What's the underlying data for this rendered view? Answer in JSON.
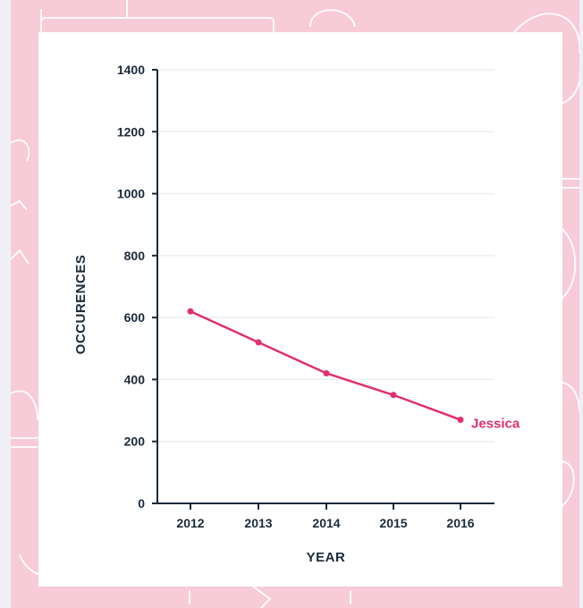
{
  "chart_data": {
    "type": "line",
    "x": [
      "2012",
      "2013",
      "2014",
      "2015",
      "2016"
    ],
    "series": [
      {
        "name": "Jessica",
        "values": [
          620,
          520,
          420,
          350,
          270
        ]
      }
    ],
    "xlabel": "YEAR",
    "ylabel": "OCCURENCES",
    "ylim": [
      0,
      1400
    ],
    "yticks": [
      0,
      200,
      400,
      600,
      800,
      1000,
      1200,
      1400
    ],
    "grid": "horizontal",
    "legend": "inline at end of series"
  },
  "colors": {
    "series": "#e0306e",
    "axis": "#1b2a3b",
    "grid": "#eceef2",
    "background": "#f7cbd8",
    "card": "#ffffff"
  }
}
